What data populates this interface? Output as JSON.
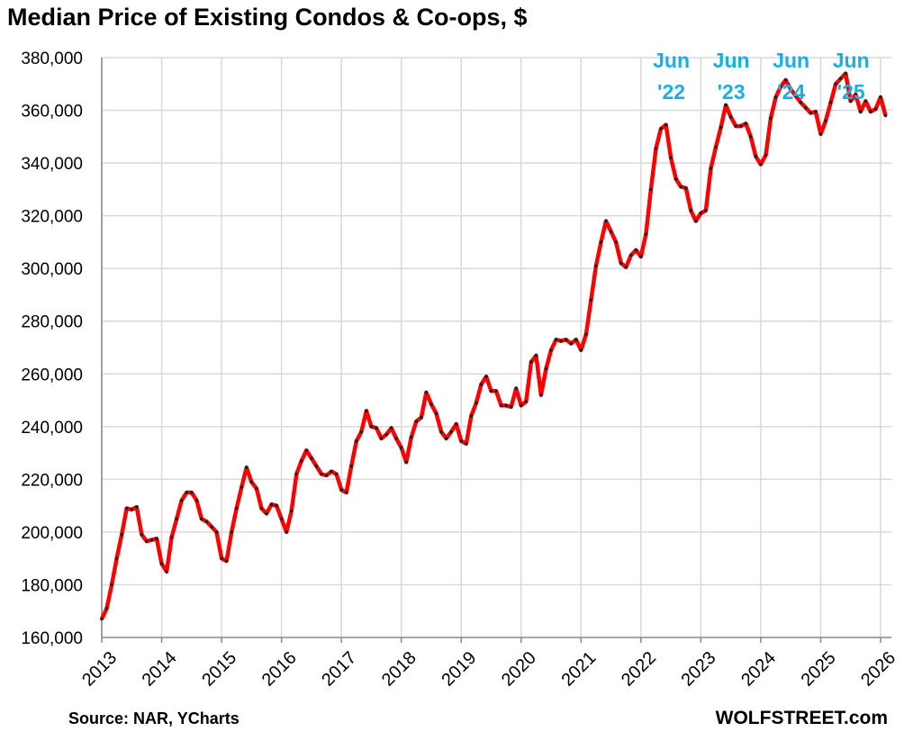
{
  "chart_data": {
    "type": "line",
    "title": "Median Price of Existing Condos & Co-ops, $",
    "source": "Source: NAR, YCharts",
    "brand": "WOLFSTREET.com",
    "series_color": "#ff0000",
    "marker_color": "#222222",
    "annotation_color": "#1aaee6",
    "grid": true,
    "ylim": [
      160000,
      380000
    ],
    "yticks": [
      160000,
      180000,
      200000,
      220000,
      240000,
      260000,
      280000,
      300000,
      320000,
      340000,
      360000,
      380000
    ],
    "ytick_labels": [
      "160,000",
      "180,000",
      "200,000",
      "220,000",
      "240,000",
      "260,000",
      "280,000",
      "300,000",
      "320,000",
      "340,000",
      "360,000",
      "380,000"
    ],
    "xticks": [
      "2013",
      "2014",
      "2015",
      "2016",
      "2017",
      "2018",
      "2019",
      "2020",
      "2021",
      "2022",
      "2023",
      "2024",
      "2025",
      "2026"
    ],
    "start": "2013-01",
    "end": "2026-02",
    "annotations": [
      {
        "line1": "Jun",
        "line2": "'22",
        "date": "2022-06"
      },
      {
        "line1": "Jun",
        "line2": "'23",
        "date": "2023-06"
      },
      {
        "line1": "Jun",
        "line2": "'24",
        "date": "2024-06"
      },
      {
        "line1": "Jun",
        "line2": "'25",
        "date": "2025-06"
      }
    ],
    "series": [
      {
        "values": [
          167000,
          171000,
          180000,
          190000,
          199000,
          209000,
          208500,
          209500,
          199000,
          196500,
          197000,
          197500,
          188000,
          185000,
          198000,
          205000,
          212000,
          215000,
          215000,
          212000,
          205000,
          204000,
          202000,
          200000,
          190000,
          189000,
          200000,
          209000,
          217000,
          224500,
          219000,
          216500,
          209000,
          207000,
          210500,
          210000,
          205000,
          200000,
          208000,
          222000,
          227000,
          231000,
          228000,
          225000,
          222000,
          221500,
          223000,
          222000,
          216000,
          215000,
          225000,
          234500,
          238000,
          246000,
          240000,
          239500,
          235500,
          237000,
          239500,
          235500,
          232000,
          226500,
          236000,
          242000,
          243500,
          253000,
          248500,
          245000,
          238000,
          235500,
          238000,
          241000,
          234500,
          233500,
          244000,
          249000,
          256000,
          259000,
          253500,
          253500,
          248000,
          248000,
          247500,
          254500,
          248000,
          249500,
          264500,
          267000,
          252000,
          262000,
          269000,
          273000,
          272500,
          273000,
          271500,
          273000,
          269000,
          275000,
          288000,
          301000,
          310000,
          318000,
          314000,
          310000,
          302000,
          300500,
          305000,
          307000,
          304500,
          313000,
          330000,
          345500,
          353000,
          354500,
          342000,
          334000,
          331000,
          330500,
          322000,
          318000,
          321000,
          322000,
          338000,
          346000,
          353500,
          362000,
          357500,
          354000,
          354000,
          355000,
          350000,
          342500,
          339500,
          343000,
          357000,
          365000,
          369000,
          371500,
          368000,
          365500,
          363000,
          361000,
          359000,
          359500,
          351000,
          356000,
          363000,
          370000,
          372000,
          374000,
          363500,
          366000,
          359500,
          363500,
          359500,
          360500,
          365000,
          358000
        ]
      }
    ]
  }
}
